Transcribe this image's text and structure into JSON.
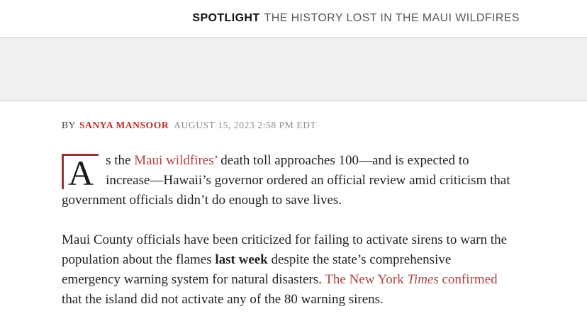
{
  "header": {
    "spotlight_label": "SPOTLIGHT",
    "spotlight_title": "THE HISTORY LOST IN THE MAUI WILDFIRES"
  },
  "byline": {
    "by_label": "BY",
    "author": "SANYA MANSOOR",
    "date": "AUGUST 15, 2023 2:58 PM EDT"
  },
  "article": {
    "dropcap": "A",
    "p1": {
      "before_link": "s the ",
      "link": "Maui wildfires’",
      "after_link": " death toll approaches 100—and is expected to increase—Hawaii’s governor ordered an official review amid criticism that government officials didn’t do enough to save lives."
    },
    "p2": {
      "seg1": "Maui County officials have been criticized for failing to activate sirens to warn the population about the flames ",
      "bold": "last week",
      "seg2": " despite the state’s comprehensive emergency warning system for natural disasters. ",
      "link_part1": "The New York ",
      "link_italic": "Times",
      "link_part2": " confirmed",
      "seg3": " that the island did not activate any of the 80 warning sirens."
    }
  },
  "colors": {
    "body_link_red": "#b14343",
    "author_red": "#c02a23",
    "dropcap_border_red": "#8e383e",
    "hero_band_gray": "#eef0f1",
    "hero_band_border": "#c9cbcc",
    "spotlight_title_gray": "#55585b",
    "date_gray": "#8c8c8c",
    "body_text": "#232323"
  }
}
